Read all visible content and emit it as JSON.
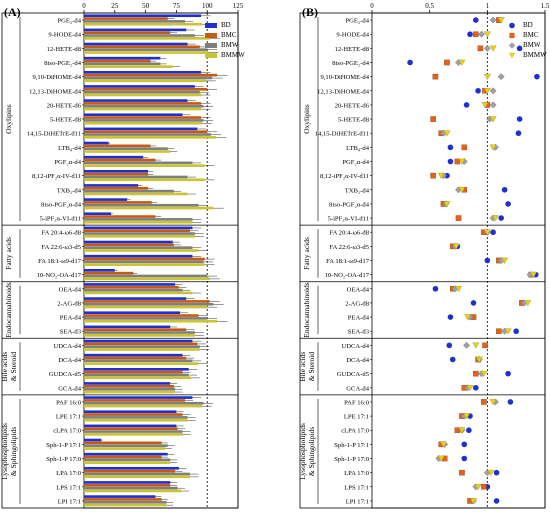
{
  "chart_data": [
    {
      "panel_label": "(A)",
      "type": "bar",
      "orientation": "horizontal",
      "xlim": [
        0,
        125
      ],
      "xticks": [
        0,
        25,
        50,
        75,
        100,
        125
      ],
      "reference_line": 100,
      "legend_position": "top-right",
      "series": [
        {
          "name": "BD",
          "color": "#1f2fd0"
        },
        {
          "name": "BMC",
          "color": "#c55a11"
        },
        {
          "name": "BMW",
          "color": "#7f7f7f"
        },
        {
          "name": "BMMW",
          "color": "#c9c430"
        }
      ],
      "groups": [
        {
          "name": "Oxylipins",
          "rows": [
            {
              "label": "PGE₂-d4",
              "values": [
                95,
                68,
                82,
                96
              ]
            },
            {
              "label": "9-HODE-d4",
              "values": [
                83,
                70,
                90,
                102
              ]
            },
            {
              "label": "12-HETE-d8",
              "values": [
                84,
                94,
                100,
                101
              ]
            },
            {
              "label": "8iso-PGE₂-d4",
              "values": [
                62,
                54,
                62,
                72
              ]
            },
            {
              "label": "9,10-DiHOME-d4",
              "values": [
                95,
                108,
                104,
                99
              ]
            },
            {
              "label": "12,13-DiHOME-d4",
              "values": [
                90,
                100,
                94,
                95
              ]
            },
            {
              "label": "20-HETE-d6",
              "values": [
                84,
                95,
                97,
                95
              ]
            },
            {
              "label": "5-HETE-d8",
              "values": [
                80,
                95,
                97,
                96
              ]
            },
            {
              "label": "14,15-DiHETrE-d11",
              "values": [
                92,
                100,
                103,
                107
              ]
            },
            {
              "label": "LTB₄-d4",
              "values": [
                20,
                54,
                68,
                70
              ]
            },
            {
              "label": "PGF₂α-d4",
              "values": [
                48,
                58,
                88,
                98
              ]
            },
            {
              "label": "8,12-iPF₂α-IV-d11",
              "values": [
                52,
                52,
                84,
                98
              ]
            },
            {
              "label": "TXB₂-d4",
              "values": [
                44,
                52,
                73,
                84
              ]
            },
            {
              "label": "8iso-PGF₂α-d4",
              "values": [
                35,
                55,
                93,
                105
              ]
            },
            {
              "label": "5-iPF₂α-VI-d11",
              "values": [
                22,
                58,
                88,
                88
              ]
            }
          ]
        },
        {
          "name": "Fatty acids",
          "rows": [
            {
              "label": "FA 20:4-ω6-d8",
              "values": [
                88,
                86,
                90,
                90
              ]
            },
            {
              "label": "FA 22:6-ω3-d5",
              "values": [
                72,
                73,
                88,
                93
              ]
            },
            {
              "label": "FA 18:1-ω9-d17",
              "values": [
                88,
                98,
                97,
                98
              ]
            },
            {
              "label": "10-NO₂-OA-d17",
              "values": [
                25,
                40,
                100,
                102
              ]
            }
          ]
        },
        {
          "name": "Endocannabinoids",
          "rows": [
            {
              "label": "OEA-d4",
              "values": [
                74,
                77,
                80,
                88
              ]
            },
            {
              "label": "2-AG-d8",
              "values": [
                83,
                102,
                105,
                100
              ]
            },
            {
              "label": "PEA-d4",
              "values": [
                78,
                93,
                100,
                108
              ]
            },
            {
              "label": "SEA-d3",
              "values": [
                70,
                83,
                90,
                90
              ]
            }
          ]
        },
        {
          "name": "Bile acids & Steroid",
          "rows": [
            {
              "label": "UDCA-d4",
              "values": [
                88,
                92,
                94,
                94
              ]
            },
            {
              "label": "DCA-d4",
              "values": [
                80,
                83,
                88,
                93
              ]
            },
            {
              "label": "GUDCA-d5",
              "values": [
                85,
                80,
                85,
                87
              ]
            },
            {
              "label": "GCA-d4",
              "values": [
                70,
                73,
                74,
                74
              ]
            }
          ]
        },
        {
          "name": "Lysophospholipids & Sphingolipids",
          "rows": [
            {
              "label": "PAF 16:0",
              "values": [
                88,
                82,
                97,
                96
              ]
            },
            {
              "label": "LPE 17:1",
              "values": [
                75,
                80,
                84,
                84
              ]
            },
            {
              "label": "cLPA 17:0",
              "values": [
                75,
                76,
                80,
                80
              ]
            },
            {
              "label": "Sph-1-P 17:1",
              "values": [
                14,
                63,
                68,
                66
              ]
            },
            {
              "label": "Sph-1-P 17:0",
              "values": [
                68,
                63,
                70,
                70
              ]
            },
            {
              "label": "LPA 17:0",
              "values": [
                77,
                74,
                86,
                86
              ]
            },
            {
              "label": "LPS 17:1",
              "values": [
                70,
                70,
                76,
                79
              ]
            },
            {
              "label": "LPI 17:1",
              "values": [
                58,
                63,
                67,
                67
              ]
            }
          ]
        }
      ]
    },
    {
      "panel_label": "(B)",
      "type": "scatter",
      "xlim": [
        0,
        1.5
      ],
      "xticks": [
        0,
        0.5,
        1.0,
        1.5
      ],
      "reference_line": 1.0,
      "legend_position": "top-right",
      "series": [
        {
          "name": "BD",
          "color": "#1f2fd0",
          "marker": "circle"
        },
        {
          "name": "BMC",
          "color": "#e8611a",
          "marker": "square"
        },
        {
          "name": "BMW",
          "color": "#a0a0a0",
          "marker": "diamond"
        },
        {
          "name": "BMMW",
          "color": "#e8d020",
          "marker": "triangle-down"
        }
      ],
      "groups": [
        {
          "name": "Oxylipins",
          "rows": [
            {
              "label": "PGE₂-d4",
              "values": [
                0.9,
                1.1,
                1.05,
                1.12
              ]
            },
            {
              "label": "9-HODE-d4",
              "values": [
                0.85,
                0.9,
                0.95,
                1.0
              ]
            },
            {
              "label": "12-HETE-d8",
              "values": [
                1.28,
                0.94,
                1.0,
                1.05
              ]
            },
            {
              "label": "8iso-PGE₂-d4",
              "values": [
                0.33,
                0.65,
                0.75,
                0.78
              ]
            },
            {
              "label": "9,10-DiHOME-d4",
              "values": [
                1.43,
                0.55,
                1.12,
                1.0
              ]
            },
            {
              "label": "12,13-DiHOME-d4",
              "values": [
                0.92,
                0.98,
                1.05,
                1.0
              ]
            },
            {
              "label": "20-HETE-d6",
              "values": [
                0.82,
                1.0,
                1.05,
                0.98
              ]
            },
            {
              "label": "5-HETE-d8",
              "values": [
                1.28,
                0.53,
                1.02,
                1.05
              ]
            },
            {
              "label": "14,15-DiHETrE-d11",
              "values": [
                1.27,
                0.6,
                0.62,
                0.65
              ]
            },
            {
              "label": "LTB₄-d4",
              "values": [
                0.68,
                0.8,
                1.07,
                1.05
              ]
            },
            {
              "label": "PGF₂α-d4",
              "values": [
                0.68,
                0.74,
                0.8,
                0.78
              ]
            },
            {
              "label": "8,12-iPF₂α-IV-d11",
              "values": [
                0.65,
                0.53,
                0.62,
                0.6
              ]
            },
            {
              "label": "TXB₂-d4",
              "values": [
                1.15,
                0.8,
                0.75,
                0.78
              ]
            },
            {
              "label": "8iso-PGF₂α-d4",
              "values": [
                1.18,
                0.62,
                0.64,
                0.65
              ]
            },
            {
              "label": "5-iPF₂α-VI-d11",
              "values": [
                1.12,
                0.75,
                1.05,
                1.07
              ]
            }
          ]
        },
        {
          "name": "Fatty acids",
          "rows": [
            {
              "label": "FA 20:4-ω6-d8",
              "values": [
                1.05,
                0.97,
                1.0,
                1.0
              ]
            },
            {
              "label": "FA 22:6-ω3-d5",
              "values": [
                0.74,
                0.7,
                0.72,
                0.73
              ]
            },
            {
              "label": "FA 18:1-ω9-d17",
              "values": [
                1.0,
                1.1,
                1.12,
                1.15
              ]
            },
            {
              "label": "10-NO₂-OA-d17",
              "values": [
                1.42,
                1.38,
                1.37,
                1.4
              ]
            }
          ]
        },
        {
          "name": "Endocannabinoids",
          "rows": [
            {
              "label": "OEA-d4",
              "values": [
                0.55,
                0.7,
                0.72,
                0.75
              ]
            },
            {
              "label": "2-AG-d8",
              "values": [
                0.88,
                1.3,
                1.32,
                1.35
              ]
            },
            {
              "label": "PEA-d4",
              "values": [
                0.68,
                0.88,
                0.85,
                0.83
              ]
            },
            {
              "label": "SEA-d3",
              "values": [
                1.25,
                1.1,
                1.15,
                1.18
              ]
            }
          ]
        },
        {
          "name": "Bile acids & Steroid",
          "rows": [
            {
              "label": "UDCA-d4",
              "values": [
                0.67,
                0.98,
                0.82,
                0.9
              ]
            },
            {
              "label": "DCA-d4",
              "values": [
                0.7,
                0.92,
                0.93,
                0.93
              ]
            },
            {
              "label": "GUDCA-d5",
              "values": [
                1.18,
                0.9,
                0.95,
                0.97
              ]
            },
            {
              "label": "GCA-d4",
              "values": [
                0.9,
                0.8,
                0.83,
                0.85
              ]
            }
          ]
        },
        {
          "name": "Lysophospholipids & Sphingolipids",
          "rows": [
            {
              "label": "PAF 16:0",
              "values": [
                1.2,
                0.97,
                1.07,
                1.05
              ]
            },
            {
              "label": "LPE 17:1",
              "values": [
                0.85,
                0.78,
                0.8,
                0.82
              ]
            },
            {
              "label": "cLPA 17:0",
              "values": [
                0.84,
                0.74,
                0.78,
                0.78
              ]
            },
            {
              "label": "Sph-1-P 17:1",
              "values": [
                0.8,
                0.6,
                0.63,
                0.62
              ]
            },
            {
              "label": "Sph-1-P 17:0",
              "values": [
                0.8,
                0.63,
                0.58,
                0.6
              ]
            },
            {
              "label": "LPA 17:0",
              "values": [
                1.08,
                0.78,
                1.0,
                1.03
              ]
            },
            {
              "label": "LPS 17:1",
              "values": [
                1.0,
                0.97,
                0.9,
                0.92
              ]
            },
            {
              "label": "LPI 17:1",
              "values": [
                1.08,
                0.85,
                0.88,
                0.88
              ]
            }
          ]
        }
      ]
    }
  ]
}
